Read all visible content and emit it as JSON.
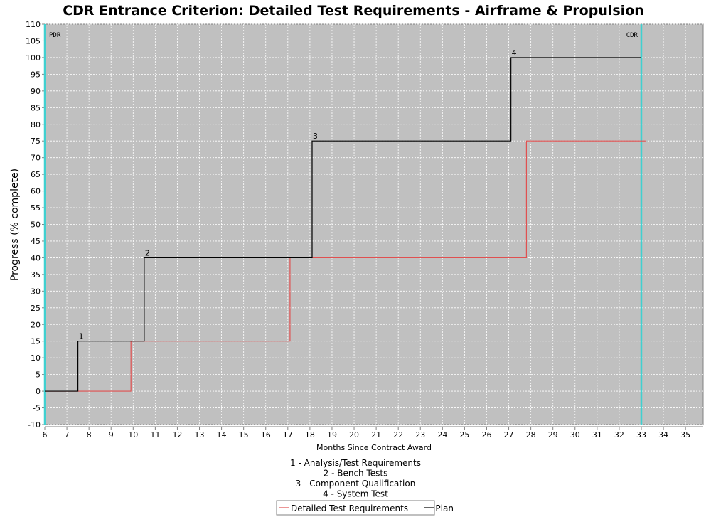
{
  "chart_data": {
    "type": "line",
    "title": "CDR Entrance Criterion: Detailed Test Requirements - Airframe & Propulsion",
    "xlabel": "Months Since Contract Award",
    "ylabel": "Progress (% complete)",
    "xlim": [
      6,
      35.8
    ],
    "ylim": [
      -10,
      110
    ],
    "x_ticks": [
      6,
      7,
      8,
      9,
      10,
      11,
      12,
      13,
      14,
      15,
      16,
      17,
      18,
      19,
      20,
      21,
      22,
      23,
      24,
      25,
      26,
      27,
      28,
      29,
      30,
      31,
      32,
      33,
      34,
      35
    ],
    "y_ticks": [
      -10,
      -5,
      0,
      5,
      10,
      15,
      20,
      25,
      30,
      35,
      40,
      45,
      50,
      55,
      60,
      65,
      70,
      75,
      80,
      85,
      90,
      95,
      100,
      105,
      110
    ],
    "grid": true,
    "background": "#c0c0c0",
    "series": [
      {
        "name": "Detailed Test Requirements",
        "color": "#e05050",
        "step": "post",
        "x": [
          6,
          9.9,
          17.1,
          27.8,
          33.2
        ],
        "y": [
          0,
          15,
          40,
          75,
          75
        ]
      },
      {
        "name": "Plan",
        "color": "#000000",
        "step": "post",
        "x": [
          6,
          7.5,
          10.5,
          18.1,
          27.1,
          33
        ],
        "y": [
          0,
          15,
          40,
          75,
          100,
          100
        ]
      }
    ],
    "vertical_markers": [
      {
        "x": 6,
        "label": "PDR",
        "color": "#40d0d0"
      },
      {
        "x": 33,
        "label": "CDR",
        "color": "#40d0d0"
      }
    ],
    "step_labels": [
      {
        "x": 7.5,
        "y": 15,
        "text": "1"
      },
      {
        "x": 10.5,
        "y": 40,
        "text": "2"
      },
      {
        "x": 18.1,
        "y": 75,
        "text": "3"
      },
      {
        "x": 27.1,
        "y": 100,
        "text": "4"
      }
    ],
    "annotations": [
      "1 - Analysis/Test Requirements",
      "2 - Bench Tests",
      "3 - Component Qualification",
      "4 - System Test"
    ],
    "legend": {
      "placement": "bottom",
      "entries": [
        "Detailed Test Requirements",
        "Plan"
      ]
    }
  }
}
